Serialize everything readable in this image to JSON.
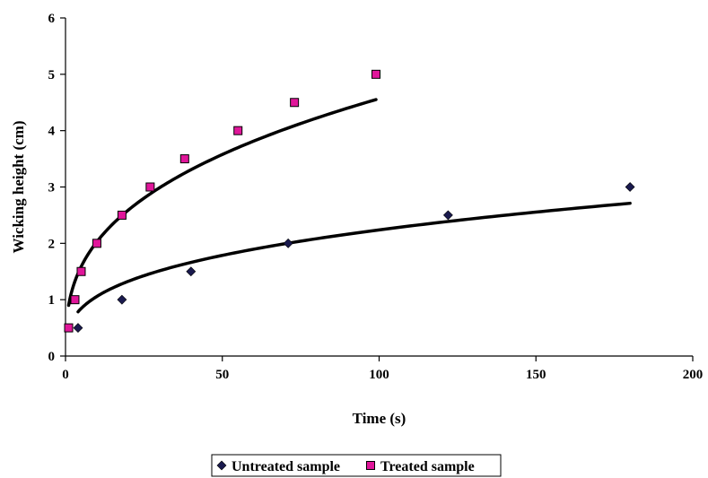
{
  "chart_data": {
    "type": "scatter",
    "xlabel": "Time (s)",
    "ylabel": "Wicking height (cm)",
    "xlim": [
      0,
      200
    ],
    "ylim": [
      0,
      6
    ],
    "xticks": [
      0,
      50,
      100,
      150,
      200
    ],
    "yticks": [
      0,
      1,
      2,
      3,
      4,
      5,
      6
    ],
    "grid": false,
    "legend_position": "bottom",
    "series": [
      {
        "name": "Untreated sample",
        "marker": "diamond",
        "color": "#1a1a4e",
        "points": [
          [
            4,
            0.5
          ],
          [
            18,
            1.0
          ],
          [
            40,
            1.5
          ],
          [
            71,
            2.0
          ],
          [
            122,
            2.5
          ],
          [
            180,
            3.0
          ]
        ],
        "trendline": {
          "type": "power",
          "a": 0.5,
          "b": 0.3255,
          "x_range": [
            4,
            180
          ]
        }
      },
      {
        "name": "Treated sample",
        "marker": "square",
        "color": "#e0169a",
        "points": [
          [
            1,
            0.5
          ],
          [
            3,
            1.0
          ],
          [
            5,
            1.5
          ],
          [
            10,
            2.0
          ],
          [
            18,
            2.5
          ],
          [
            27,
            3.0
          ],
          [
            38,
            3.5
          ],
          [
            55,
            4.0
          ],
          [
            73,
            4.5
          ],
          [
            99,
            5.0
          ]
        ],
        "trendline": {
          "type": "power",
          "a": 0.9,
          "b": 0.3527,
          "x_range": [
            1,
            99
          ]
        }
      }
    ]
  }
}
